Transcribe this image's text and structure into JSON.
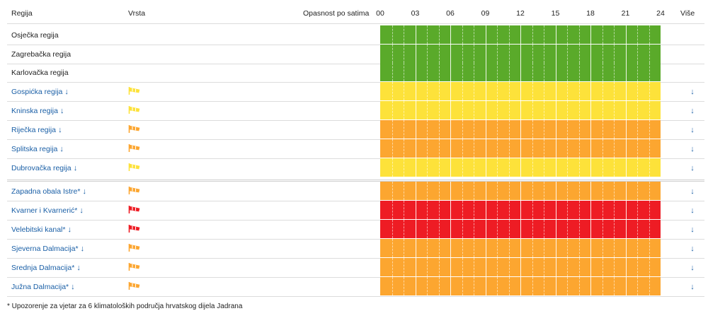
{
  "header": {
    "regija": "Regija",
    "vrsta": "Vrsta",
    "opasnost": "Opasnost po satima",
    "vise": "Više",
    "ticks": [
      "00",
      "03",
      "06",
      "09",
      "12",
      "15",
      "18",
      "21",
      "24"
    ]
  },
  "colors": {
    "green": "#5aaa2a",
    "yellow": "#fde23a",
    "orange": "#fca630",
    "red": "#ee1c24",
    "link": "#1a5fa6"
  },
  "rows": [
    {
      "label": "Osječka regija",
      "link": false,
      "level": "green",
      "flag": null,
      "more": false
    },
    {
      "label": "Zagrebačka regija",
      "link": false,
      "level": "green",
      "flag": null,
      "more": false
    },
    {
      "label": "Karlovačka regija",
      "link": false,
      "level": "green",
      "flag": null,
      "more": false
    },
    {
      "label": "Gospićka regija",
      "link": true,
      "level": "yellow",
      "flag": "yellow",
      "more": true
    },
    {
      "label": "Kninska regija",
      "link": true,
      "level": "yellow",
      "flag": "yellow",
      "more": true
    },
    {
      "label": "Riječka regija",
      "link": true,
      "level": "orange",
      "flag": "orange",
      "more": true
    },
    {
      "label": "Splitska regija",
      "link": true,
      "level": "orange",
      "flag": "orange",
      "more": true
    },
    {
      "label": "Dubrovačka regija",
      "link": true,
      "level": "yellow",
      "flag": "yellow",
      "more": true
    },
    {
      "label": "Zapadna obala Istre*",
      "link": true,
      "level": "orange",
      "flag": "orange",
      "more": true
    },
    {
      "label": "Kvarner i Kvarnerić*",
      "link": true,
      "level": "red",
      "flag": "red",
      "more": true
    },
    {
      "label": "Velebitski kanal*",
      "link": true,
      "level": "red",
      "flag": "red",
      "more": true
    },
    {
      "label": "Sjeverna Dalmacija*",
      "link": true,
      "level": "orange",
      "flag": "orange",
      "more": true
    },
    {
      "label": "Srednja Dalmacija*",
      "link": true,
      "level": "orange",
      "flag": "orange",
      "more": true
    },
    {
      "label": "Južna Dalmacija*",
      "link": true,
      "level": "orange",
      "flag": "orange",
      "more": true
    }
  ],
  "icons": {
    "row_arrow": "↓",
    "more_arrow": "↓",
    "flag": "windsock-icon"
  },
  "footnote": "* Upozorenje za vjetar za 6 klimatoloških područja hrvatskog dijela Jadrana"
}
